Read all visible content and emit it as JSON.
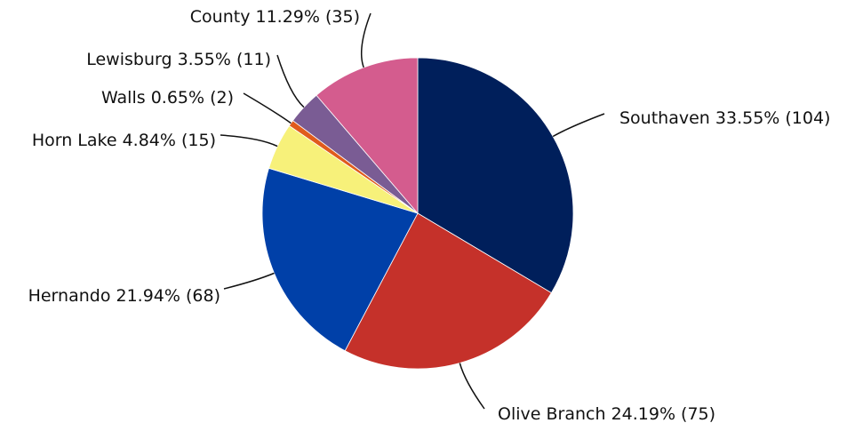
{
  "chart_data": {
    "type": "pie",
    "categories": [
      "Southaven",
      "Olive Branch",
      "Hernando",
      "Horn Lake",
      "Walls",
      "Lewisburg",
      "County"
    ],
    "values": [
      104,
      75,
      68,
      15,
      2,
      11,
      35
    ],
    "value_labels": [
      "33.55% (104)",
      "24.19% (75)",
      "21.94% (68)",
      "4.84% (15)",
      "0.65% (2)",
      "3.55% (11)",
      "11.29% (35)"
    ],
    "colors": [
      "#001f5b",
      "#c5312a",
      "#0040a8",
      "#f7f17a",
      "#e05b1c",
      "#7a5c94",
      "#d45c8e"
    ]
  }
}
